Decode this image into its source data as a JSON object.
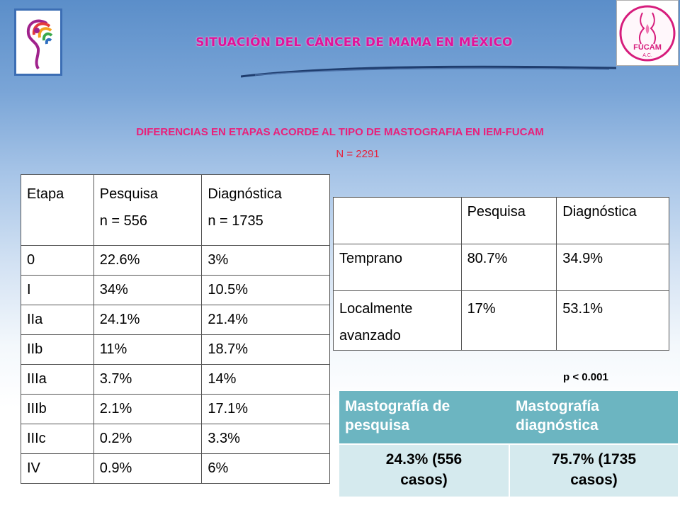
{
  "header": {
    "title": "SITUACIÓN  DEL CÁNCER DE MAMA EN MÉXICO",
    "logo_left_icon": "rainbow-woman-silhouette-icon",
    "logo_right_icon": "fucam-woman-ribbon-logo-icon",
    "logo_right_text": "FUCAM",
    "logo_right_subtext": "A.C."
  },
  "subtitle": "DIFERENCIAS EN ETAPAS ACORDE AL TIPO DE MASTOGRAFIA EN IEM-FUCAM",
  "n_total": "N = 2291",
  "stage_table": {
    "headers": [
      {
        "line1": "Etapa",
        "line2": ""
      },
      {
        "line1": "Pesquisa",
        "line2": "n = 556"
      },
      {
        "line1": "Diagnóstica",
        "line2": "n = 1735"
      }
    ],
    "rows": [
      [
        "0",
        "22.6%",
        "3%"
      ],
      [
        "I",
        "34%",
        "10.5%"
      ],
      [
        "IIa",
        "24.1%",
        "21.4%"
      ],
      [
        "IIb",
        "11%",
        "18.7%"
      ],
      [
        "IIIa",
        "3.7%",
        "14%"
      ],
      [
        "IIIb",
        "2.1%",
        "17.1%"
      ],
      [
        "IIIc",
        "0.2%",
        "3.3%"
      ],
      [
        "IV",
        "0.9%",
        "6%"
      ]
    ]
  },
  "comparison_table": {
    "headers": [
      "",
      "Pesquisa",
      "Diagnóstica"
    ],
    "rows": [
      {
        "label1": "Temprano",
        "label2": "",
        "pesquisa": "80.7%",
        "diagnostica": "34.9%"
      },
      {
        "label1": "Localmente",
        "label2": "avanzado",
        "pesquisa": "17%",
        "diagnostica": "53.1%"
      }
    ]
  },
  "p_value": "p < 0.001",
  "summary": {
    "headers": [
      {
        "line1": "Mastografía de",
        "line2": "pesquisa"
      },
      {
        "line1": "Mastografía",
        "line2": "diagnóstica"
      }
    ],
    "values": [
      {
        "line1": "24.3% (556",
        "line2": "casos)"
      },
      {
        "line1": "75.7% (1735",
        "line2": "casos)"
      }
    ]
  },
  "colors": {
    "title": "#e0149a",
    "subtitle": "#e8207a",
    "n_count": "#e8203a",
    "summary_header_bg": "#6cb5c1",
    "summary_body_bg": "#d5eaee",
    "background_top": "#5b8ec9"
  }
}
